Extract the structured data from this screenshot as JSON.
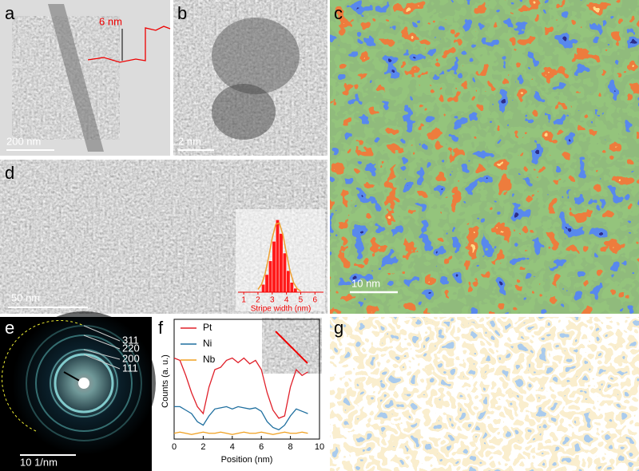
{
  "panels": {
    "a": {
      "label": "a",
      "scale_bar": "200 nm",
      "height_label": "6 nm"
    },
    "b": {
      "label": "b",
      "scale_bar": "2 nm"
    },
    "c": {
      "label": "c",
      "scale_bar": "10 nm"
    },
    "d": {
      "label": "d",
      "scale_bar": "50 nm"
    },
    "e": {
      "label": "e",
      "scale_bar": "10 1/nm",
      "rings": [
        "311",
        "220",
        "200",
        "111"
      ]
    },
    "f": {
      "label": "f"
    },
    "g": {
      "label": "g"
    }
  },
  "chart_data": [
    {
      "type": "histogram",
      "xlabel": "Stripe width (nm)",
      "bins": [
        2.25,
        2.5,
        2.75,
        3,
        3.25,
        3.5,
        3.75,
        4,
        4.25,
        4.5,
        4.75
      ],
      "counts": [
        4,
        9,
        16,
        26,
        37,
        30,
        20,
        11,
        5,
        2
      ],
      "color": "#ff1a1a",
      "xlim": [
        0.6,
        6.6
      ],
      "xticks": [
        1,
        2,
        3,
        4,
        5,
        6
      ],
      "ylim": [
        0,
        40
      ],
      "fit": {
        "x": [
          2,
          2.25,
          2.5,
          2.75,
          3,
          3.25,
          3.5,
          3.75,
          4,
          4.25,
          4.5,
          4.75,
          5
        ],
        "values": [
          1.4,
          4,
          9.4,
          18,
          27.6,
          34.7,
          35.4,
          29.4,
          19.9,
          10.9,
          4.9,
          1.8,
          0.5
        ],
        "color": "#f0a030"
      }
    },
    {
      "type": "line",
      "xlabel": "Position (nm)",
      "ylabel": "Counts (a. u.)",
      "x": [
        0,
        0.4,
        0.8,
        1.2,
        1.6,
        2,
        2.4,
        2.8,
        3.2,
        3.6,
        4,
        4.4,
        4.8,
        5.2,
        5.6,
        6,
        6.4,
        6.8,
        7.2,
        7.6,
        8,
        8.4,
        8.8,
        9.2
      ],
      "series": [
        {
          "name": "Pt",
          "color": "#e0202a",
          "values": [
            70,
            68,
            55,
            40,
            28,
            22,
            45,
            60,
            62,
            68,
            70,
            66,
            70,
            65,
            68,
            60,
            40,
            25,
            18,
            20,
            45,
            60,
            55,
            58
          ]
        },
        {
          "name": "Ni",
          "color": "#1f6f9f",
          "values": [
            28,
            28,
            25,
            22,
            15,
            12,
            20,
            26,
            27,
            28,
            26,
            28,
            27,
            26,
            27,
            24,
            15,
            10,
            8,
            12,
            20,
            26,
            24,
            22
          ]
        },
        {
          "name": "Nb",
          "color": "#f0a020",
          "values": [
            5,
            6,
            5,
            4,
            5,
            6,
            5,
            5,
            6,
            5,
            4,
            5,
            6,
            5,
            5,
            6,
            5,
            4,
            5,
            6,
            5,
            5,
            6,
            5
          ]
        }
      ],
      "xlim": [
        0,
        10
      ],
      "xticks": [
        0,
        2,
        4,
        6,
        8,
        10
      ],
      "ylim": [
        0,
        100
      ],
      "legend": "upper left"
    }
  ]
}
